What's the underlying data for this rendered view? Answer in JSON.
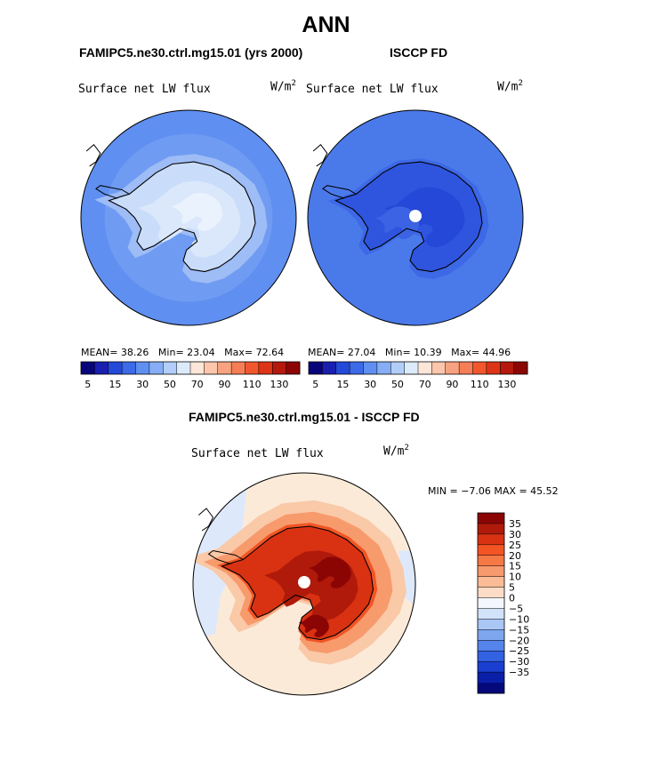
{
  "page": {
    "title": "ANN",
    "diff_title": "FAMIPC5.ne30.ctrl.mg15.01 - ISCCP FD"
  },
  "panels": [
    {
      "id": "model",
      "title": "FAMIPC5.ne30.ctrl.mg15.01 (yrs 2000)",
      "variable": "Surface net LW flux",
      "units": "W/m",
      "units_sup": "2",
      "mean_label": "MEAN=",
      "mean": "38.26",
      "min_label": "Min=",
      "min": "23.04",
      "max_label": "Max=",
      "max": "72.64",
      "ocean_color": "#5f8ff0",
      "land_color": "#dbe8fb",
      "coast_color": "#9ebcf5"
    },
    {
      "id": "obs",
      "title": "ISCCP FD",
      "variable": "Surface net LW flux",
      "units": "W/m",
      "units_sup": "2",
      "mean_label": "MEAN=",
      "mean": "27.04",
      "min_label": "Min=",
      "min": "10.39",
      "max_label": "Max=",
      "max": "44.96",
      "ocean_color": "#4a7aea",
      "land_color": "#2f55df",
      "coast_color": "#3d68e6"
    }
  ],
  "diff_panel": {
    "variable": "Surface net LW flux",
    "units": "W/m",
    "units_sup": "2",
    "min_label": "MIN =",
    "min": "−7.06",
    "max_label": "MAX =",
    "max": "45.52"
  },
  "chart_data": [
    {
      "type": "heatmap",
      "title": "FAMIPC5.ne30.ctrl.mg15.01 (yrs 2000)",
      "subtitle": "Surface net LW flux",
      "units": "W/m2",
      "projection": "south polar stereographic",
      "stats": {
        "mean": 38.26,
        "min": 23.04,
        "max": 72.64
      },
      "colorbar": {
        "orientation": "horizontal",
        "colors": [
          "#08047a",
          "#1a1fb0",
          "#2448d8",
          "#3c6ae8",
          "#5f8ff0",
          "#86adf5",
          "#b2cdf8",
          "#dcebfb",
          "#fde6d8",
          "#fbc6ac",
          "#f8a27f",
          "#f67e56",
          "#f2562d",
          "#dd3417",
          "#b5190d",
          "#8c0505"
        ],
        "tick_labels": [
          "5",
          "15",
          "30",
          "50",
          "70",
          "90",
          "110",
          "130"
        ]
      }
    },
    {
      "type": "heatmap",
      "title": "ISCCP FD",
      "subtitle": "Surface net LW flux",
      "units": "W/m2",
      "projection": "south polar stereographic",
      "stats": {
        "mean": 27.04,
        "min": 10.39,
        "max": 44.96
      },
      "colorbar": {
        "orientation": "horizontal",
        "colors": [
          "#08047a",
          "#1a1fb0",
          "#2448d8",
          "#3c6ae8",
          "#5f8ff0",
          "#86adf5",
          "#b2cdf8",
          "#dcebfb",
          "#fde6d8",
          "#fbc6ac",
          "#f8a27f",
          "#f67e56",
          "#f2562d",
          "#dd3417",
          "#b5190d",
          "#8c0505"
        ],
        "tick_labels": [
          "5",
          "15",
          "30",
          "50",
          "70",
          "90",
          "110",
          "130"
        ]
      }
    },
    {
      "type": "heatmap",
      "title": "FAMIPC5.ne30.ctrl.mg15.01 - ISCCP FD",
      "subtitle": "Surface net LW flux",
      "units": "W/m2",
      "projection": "south polar stereographic",
      "stats": {
        "min": -7.06,
        "max": 45.52
      },
      "colorbar": {
        "orientation": "vertical",
        "colors_top_to_bottom": [
          "#8c0505",
          "#b01a0a",
          "#d83212",
          "#f25424",
          "#f57845",
          "#f79a6c",
          "#f9bc97",
          "#fcdcc6",
          "#f4f7fd",
          "#d2e2f8",
          "#a9c6f4",
          "#7ea6ef",
          "#5584ea",
          "#3262e2",
          "#1a3ed0",
          "#0a1fa8",
          "#05087a"
        ],
        "tick_labels_top_to_bottom": [
          "35",
          "30",
          "25",
          "20",
          "15",
          "10",
          "5",
          "0",
          "−5",
          "−10",
          "−15",
          "−20",
          "−25",
          "−30",
          "−35"
        ]
      }
    }
  ]
}
